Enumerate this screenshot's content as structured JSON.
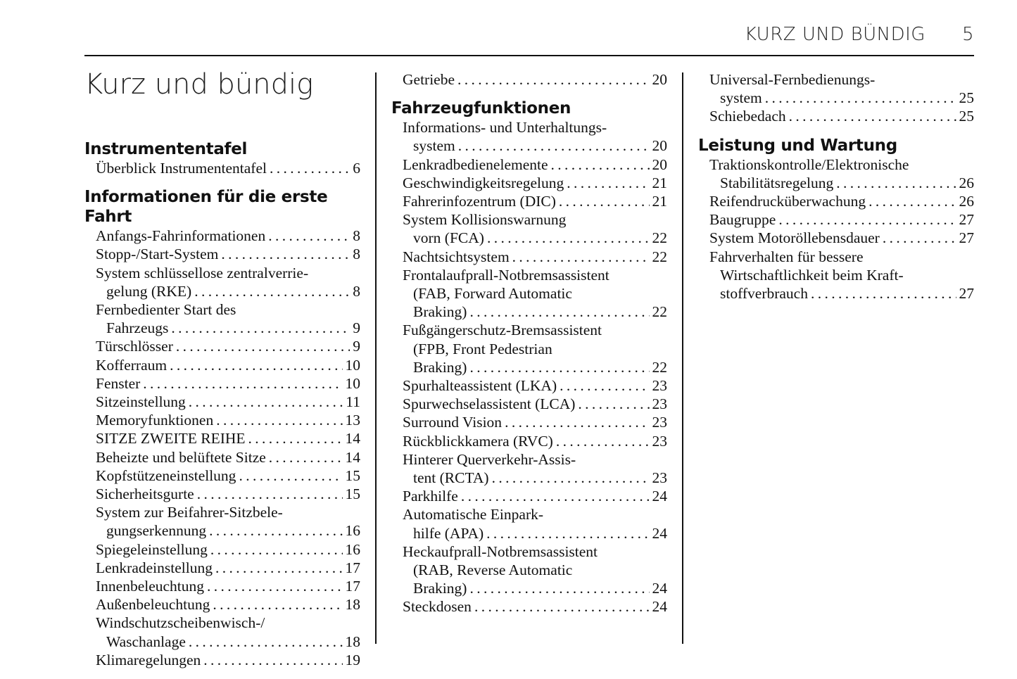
{
  "header": {
    "running_title": "KURZ UND BÜNDIG",
    "page_number": "5"
  },
  "columns": [
    {
      "title": "Kurz und bündig",
      "blocks": [
        {
          "heading": "Instrumententafel",
          "entries": [
            {
              "lines": [
                "Überblick Instrumententafel"
              ],
              "page": "6"
            }
          ]
        },
        {
          "heading": "Informationen für die erste Fahrt",
          "entries": [
            {
              "lines": [
                "Anfangs-Fahrinformationen"
              ],
              "page": "8"
            },
            {
              "lines": [
                "Stopp-/Start-System"
              ],
              "page": "8"
            },
            {
              "lines": [
                "System schlüssellose zentralverrie-",
                "gelung (RKE)"
              ],
              "page": "8"
            },
            {
              "lines": [
                "Fernbedienter Start des",
                "Fahrzeugs"
              ],
              "page": "9"
            },
            {
              "lines": [
                "Türschlösser"
              ],
              "page": "9"
            },
            {
              "lines": [
                "Kofferraum"
              ],
              "page": "10"
            },
            {
              "lines": [
                "Fenster"
              ],
              "page": "10"
            },
            {
              "lines": [
                "Sitzeinstellung"
              ],
              "page": "11"
            },
            {
              "lines": [
                "Memoryfunktionen"
              ],
              "page": "13"
            },
            {
              "lines": [
                "SITZE ZWEITE REIHE"
              ],
              "page": "14"
            },
            {
              "lines": [
                "Beheizte und belüftete Sitze"
              ],
              "page": "14"
            },
            {
              "lines": [
                "Kopfstützeneinstellung"
              ],
              "page": "15"
            },
            {
              "lines": [
                "Sicherheitsgurte"
              ],
              "page": "15"
            },
            {
              "lines": [
                "System zur Beifahrer-Sitzbele-",
                "gungserkennung"
              ],
              "page": "16"
            },
            {
              "lines": [
                "Spiegeleinstellung"
              ],
              "page": "16"
            },
            {
              "lines": [
                "Lenkradeinstellung"
              ],
              "page": "17"
            },
            {
              "lines": [
                "Innenbeleuchtung"
              ],
              "page": "17"
            },
            {
              "lines": [
                "Außenbeleuchtung"
              ],
              "page": "18"
            },
            {
              "lines": [
                "Windschutzscheibenwisch-/",
                "Waschanlage"
              ],
              "page": "18"
            },
            {
              "lines": [
                "Klimaregelungen"
              ],
              "page": "19"
            }
          ]
        }
      ]
    },
    {
      "blocks": [
        {
          "heading": "",
          "entries": [
            {
              "lines": [
                "Getriebe"
              ],
              "page": "20"
            }
          ]
        },
        {
          "heading": "Fahrzeugfunktionen",
          "entries": [
            {
              "lines": [
                "Informations- und Unterhaltungs-",
                "system"
              ],
              "page": "20"
            },
            {
              "lines": [
                "Lenkradbedienelemente"
              ],
              "page": "20"
            },
            {
              "lines": [
                "Geschwindigkeitsregelung"
              ],
              "page": "21"
            },
            {
              "lines": [
                "Fahrerinfozentrum (DIC)"
              ],
              "page": "21"
            },
            {
              "lines": [
                "System Kollisionswarnung",
                "vorn (FCA)"
              ],
              "page": "22"
            },
            {
              "lines": [
                "Nachtsichtsystem"
              ],
              "page": "22"
            },
            {
              "lines": [
                "Frontalaufprall-Notbremsassistent",
                "(FAB, Forward Automatic",
                "Braking)"
              ],
              "page": "22"
            },
            {
              "lines": [
                "Fußgängerschutz-Bremsassistent",
                "(FPB, Front Pedestrian",
                "Braking)"
              ],
              "page": "22"
            },
            {
              "lines": [
                "Spurhalteassistent (LKA)"
              ],
              "page": "23"
            },
            {
              "lines": [
                "Spurwechselassistent (LCA)"
              ],
              "page": "23"
            },
            {
              "lines": [
                "Surround Vision"
              ],
              "page": "23"
            },
            {
              "lines": [
                "Rückblickkamera (RVC)"
              ],
              "page": "23"
            },
            {
              "lines": [
                "Hinterer Querverkehr-Assis-",
                "tent (RCTA)"
              ],
              "page": "23"
            },
            {
              "lines": [
                "Parkhilfe"
              ],
              "page": "24"
            },
            {
              "lines": [
                "Automatische Einpark-",
                "hilfe (APA)"
              ],
              "page": "24"
            },
            {
              "lines": [
                "Heckaufprall-Notbremsassistent",
                "(RAB, Reverse Automatic",
                "Braking)"
              ],
              "page": "24"
            },
            {
              "lines": [
                "Steckdosen"
              ],
              "page": "24"
            }
          ]
        }
      ]
    },
    {
      "blocks": [
        {
          "heading": "",
          "entries": [
            {
              "lines": [
                "Universal-Fernbedienungs-",
                "system"
              ],
              "page": "25"
            },
            {
              "lines": [
                "Schiebedach"
              ],
              "page": "25"
            }
          ]
        },
        {
          "heading": "Leistung und Wartung",
          "entries": [
            {
              "lines": [
                "Traktionskontrolle/Elektronische",
                "Stabilitätsregelung"
              ],
              "page": "26"
            },
            {
              "lines": [
                "Reifendrucküberwachung"
              ],
              "page": "26"
            },
            {
              "lines": [
                "Baugruppe"
              ],
              "page": "27"
            },
            {
              "lines": [
                "System Motoröllebensdauer"
              ],
              "page": "27"
            },
            {
              "lines": [
                "Fahrverhalten für bessere",
                "Wirtschaftlichkeit beim Kraft-",
                "stoffverbrauch"
              ],
              "page": "27"
            }
          ]
        }
      ]
    }
  ]
}
